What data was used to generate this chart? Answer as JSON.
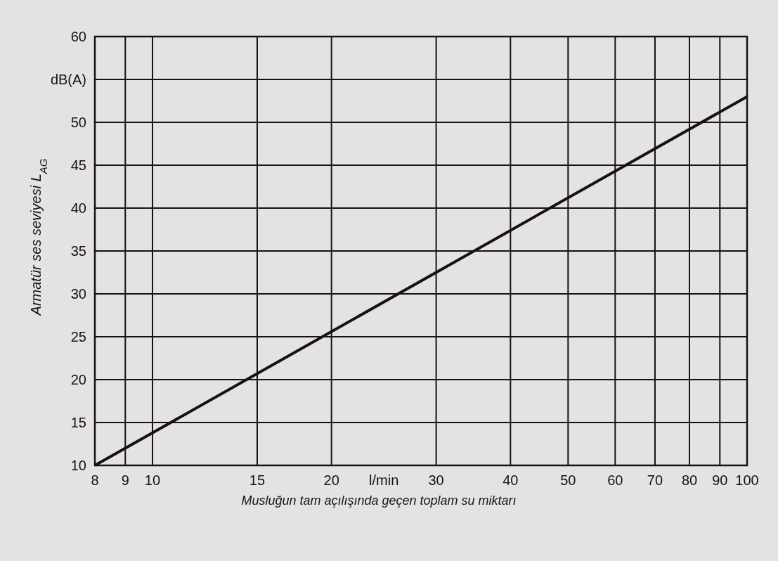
{
  "chart_data": {
    "type": "line",
    "xlabel": "Musluğun tam açılışında geçen toplam su miktarı",
    "ylabel": "Armatür ses seviyesi L$_{AG}$",
    "annotations": [
      "l/min"
    ],
    "x": [
      8,
      100
    ],
    "series": [
      {
        "color": "#1a1010",
        "values": [
          10,
          53
        ]
      }
    ],
    "log": "x",
    "xlim": [
      8,
      100
    ],
    "xticks": [
      8,
      9,
      10,
      15,
      20,
      30,
      40,
      50,
      60,
      70,
      80,
      90,
      100
    ],
    "ylim": [
      10,
      60
    ],
    "yticks": [
      10,
      15,
      20,
      25,
      30,
      35,
      40,
      45,
      50,
      {
        "value": 55,
        "label": "dB(A)"
      },
      60
    ],
    "grid": true,
    "marker": "none",
    "line_style": "solid"
  }
}
